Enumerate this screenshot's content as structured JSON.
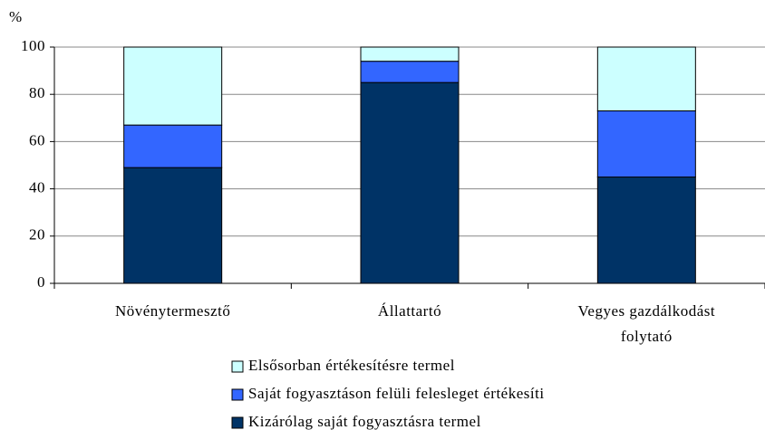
{
  "chart_data": {
    "type": "stacked-bar",
    "y_label": "%",
    "categories": [
      "Növénytermesztő",
      "Állattartó",
      "Vegyes gazdálkodást folytató"
    ],
    "series": [
      {
        "name": "Kizárólag saját fogyasztásra termel",
        "color": "#003366",
        "values": [
          49,
          85,
          45
        ]
      },
      {
        "name": "Saját fogyasztáson felüli felesleget értékesíti",
        "color": "#3366ff",
        "values": [
          18,
          9,
          28
        ]
      },
      {
        "name": "Elsősorban értékesítésre termel",
        "color": "#ccffff",
        "values": [
          33,
          6,
          27
        ]
      }
    ],
    "ylim": [
      0,
      100
    ],
    "yticks": [
      0,
      20,
      40,
      60,
      80,
      100
    ],
    "grid": true
  }
}
